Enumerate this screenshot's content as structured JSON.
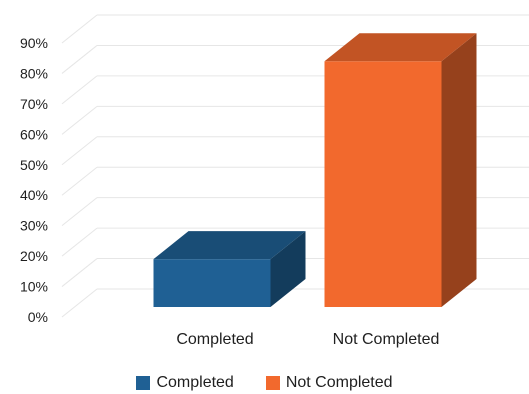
{
  "chart_data": {
    "type": "bar",
    "categories": [
      "Completed",
      "Not Completed"
    ],
    "values": [
      0.19,
      0.84
    ],
    "colors": [
      "#1f6094",
      "#f2692d"
    ],
    "ylim": [
      0,
      0.9
    ],
    "yticks": [
      "0%",
      "10%",
      "20%",
      "30%",
      "40%",
      "50%",
      "60%",
      "70%",
      "80%",
      "90%"
    ],
    "grid": true,
    "three_d": true,
    "legend_position": "bottom",
    "legend": [
      {
        "label": "Completed",
        "color": "#1f6094"
      },
      {
        "label": "Not Completed",
        "color": "#f2692d"
      }
    ]
  }
}
